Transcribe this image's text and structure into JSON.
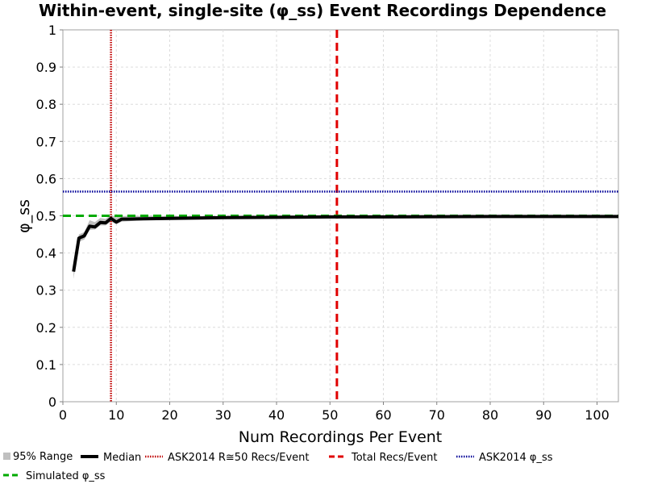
{
  "chart_data": {
    "type": "line",
    "title": "Within-event, single-site (φ_ss) Event Recordings Dependence",
    "xlabel": "Num Recordings Per Event",
    "ylabel": "φ_ss",
    "xlim": [
      0,
      104
    ],
    "ylim": [
      0,
      1
    ],
    "x_ticks": [
      0,
      10,
      20,
      30,
      40,
      50,
      60,
      70,
      80,
      90,
      100
    ],
    "y_ticks": [
      0,
      0.1,
      0.2,
      0.3,
      0.4,
      0.5,
      0.6,
      0.7,
      0.8,
      0.9,
      1
    ],
    "y_tick_labels": [
      "0",
      "0.1",
      "0.2",
      "0.3",
      "0.4",
      "0.5",
      "0.6",
      "0.7",
      "0.8",
      "0.9",
      "1"
    ],
    "grid": true,
    "legend_position": "bottom",
    "series": [
      {
        "name": "95% Range",
        "kind": "band",
        "color": "#c0c0c0",
        "x": [
          2,
          3,
          4,
          5,
          6,
          7,
          8,
          9,
          10,
          11,
          12,
          15,
          20,
          30,
          40,
          50,
          60,
          80,
          104
        ],
        "lower": [
          0.33,
          0.43,
          0.436,
          0.462,
          0.463,
          0.474,
          0.474,
          0.484,
          0.478,
          0.484,
          0.485,
          0.488,
          0.49,
          0.493,
          0.494,
          0.495,
          0.496,
          0.497,
          0.497
        ],
        "upper": [
          0.37,
          0.45,
          0.456,
          0.488,
          0.483,
          0.494,
          0.492,
          0.502,
          0.496,
          0.5,
          0.499,
          0.5,
          0.499,
          0.499,
          0.499,
          0.499,
          0.499,
          0.499,
          0.499
        ]
      },
      {
        "name": "Median",
        "kind": "line",
        "color": "#000000",
        "x": [
          2,
          3,
          4,
          5,
          6,
          7,
          8,
          9,
          10,
          11,
          12,
          15,
          20,
          30,
          40,
          50,
          60,
          80,
          104
        ],
        "y": [
          0.35,
          0.44,
          0.446,
          0.472,
          0.47,
          0.482,
          0.481,
          0.493,
          0.483,
          0.491,
          0.491,
          0.492,
          0.493,
          0.495,
          0.496,
          0.497,
          0.497,
          0.498,
          0.498
        ]
      },
      {
        "name": "ASK2014 R≅50 Recs/Event",
        "kind": "vline",
        "color": "#c00000",
        "dash": "dotted",
        "x": 9
      },
      {
        "name": "Total Recs/Event",
        "kind": "vline",
        "color": "#e00000",
        "dash": "dashed",
        "x": 51.3
      },
      {
        "name": "ASK2014 φ_ss",
        "kind": "hline",
        "color": "#000099",
        "dash": "dotted",
        "y": 0.565
      },
      {
        "name": "Simulated φ_ss",
        "kind": "hline",
        "color": "#00aa00",
        "dash": "dashed",
        "y": 0.5
      }
    ]
  }
}
